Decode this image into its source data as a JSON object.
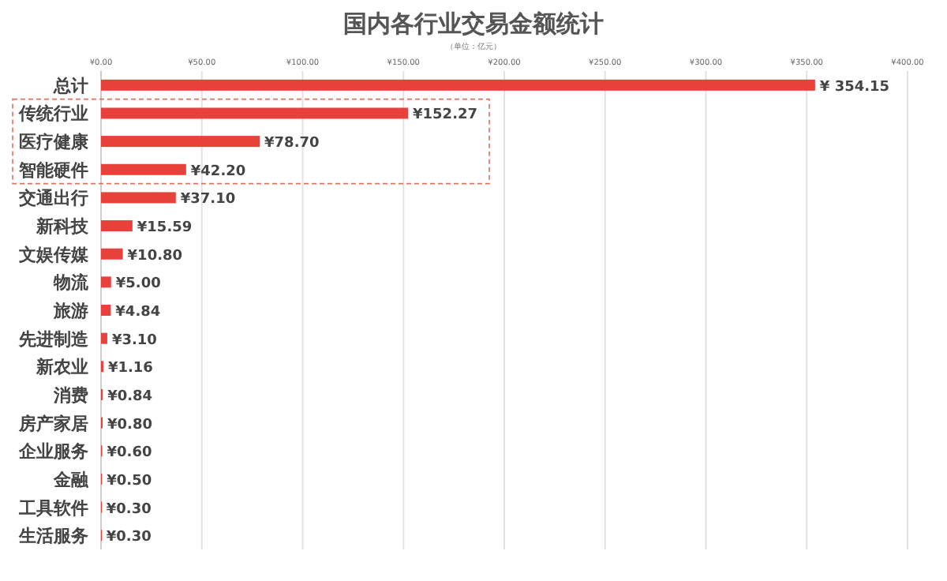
{
  "chart_data": {
    "type": "bar",
    "orientation": "horizontal",
    "title": "国内各行业交易金额统计",
    "subtitle": "（单位：亿元）",
    "categories": [
      "总计",
      "传统行业",
      "医疗健康",
      "智能硬件",
      "交通出行",
      "新科技",
      "文娱传媒",
      "物流",
      "旅游",
      "先进制造",
      "新农业",
      "消费",
      "房产家居",
      "企业服务",
      "金融",
      "工具软件",
      "生活服务"
    ],
    "values": [
      354.15,
      152.27,
      78.7,
      42.2,
      37.1,
      15.59,
      10.8,
      5.0,
      4.84,
      3.1,
      1.16,
      0.84,
      0.8,
      0.6,
      0.5,
      0.3,
      0.3
    ],
    "value_labels": [
      "¥ 354.15",
      "¥152.27",
      "¥78.70",
      "¥42.20",
      "¥37.10",
      "¥15.59",
      "¥10.80",
      "¥5.00",
      "¥4.84",
      "¥3.10",
      "¥1.16",
      "¥0.84",
      "¥0.80",
      "¥0.60",
      "¥0.50",
      "¥0.30",
      "¥0.30"
    ],
    "color": "#e8403a",
    "xlim": [
      0,
      400
    ],
    "xticks": [
      {
        "value": 0,
        "label": "¥0.00"
      },
      {
        "value": 50,
        "label": "¥50.00"
      },
      {
        "value": 100,
        "label": "¥100.00"
      },
      {
        "value": 150,
        "label": "¥150.00"
      },
      {
        "value": 200,
        "label": "¥200.00"
      },
      {
        "value": 250,
        "label": "¥250.00"
      },
      {
        "value": 300,
        "label": "¥300.00"
      },
      {
        "value": 350,
        "label": "¥350.00"
      },
      {
        "value": 400,
        "label": "¥400.00"
      }
    ],
    "grid": "x"
  }
}
